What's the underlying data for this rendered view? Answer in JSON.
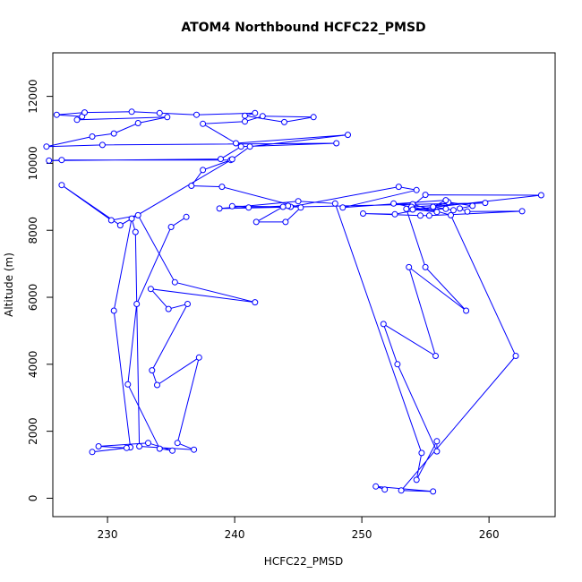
{
  "chart_data": {
    "type": "line",
    "title": "ATOM4 Northbound HCFC22_PMSD",
    "xlabel": "HCFC22_PMSD",
    "ylabel": "Altitude (m)",
    "xlim": [
      225.7,
      265.2
    ],
    "ylim": [
      -550,
      13300
    ],
    "x_ticks": [
      230,
      240,
      250,
      260
    ],
    "y_ticks": [
      0,
      2000,
      4000,
      6000,
      8000,
      10000,
      12000
    ],
    "x_tick_labels": [
      "230",
      "240",
      "250",
      "260"
    ],
    "y_tick_labels": [
      "0",
      "2000",
      "4000",
      "6000",
      "8000",
      "10000",
      "12000"
    ],
    "grid": false,
    "markers": "open-circle",
    "series": [
      {
        "color": "#0000ff",
        "x": [
          251.8,
          251.1,
          255.6,
          253.1,
          262.1,
          257.0,
          254.0,
          252.5,
          255.9,
          253.5,
          255.0,
          258.2,
          253.7,
          255.8,
          251.7,
          252.8,
          255.9,
          255.9,
          254.3,
          254.7,
          247.9,
          245.0,
          238.8,
          259.7,
          253.9,
          255.0,
          264.1,
          254.0,
          256.6,
          257.2,
          255.6,
          252.6,
          250.1,
          254.6,
          255.3,
          262.6,
          258.3,
          257.7,
          258.7,
          256.8,
          255.6,
          256.6,
          248.5,
          254.3,
          252.9,
          244.4,
          239.8,
          241.1,
          244.2,
          243.8,
          241.7,
          244.0,
          245.2,
          239.0,
          236.6,
          237.5,
          239.7,
          226.4,
          225.4,
          238.9,
          240.5,
          248.0,
          229.6,
          225.2,
          228.8,
          230.5,
          232.4,
          234.7,
          227.6,
          228.0,
          226.0,
          228.2,
          231.9,
          234.1,
          237.0,
          241.6,
          240.8,
          243.9,
          246.2,
          242.2,
          240.8,
          237.5,
          240.1,
          248.9,
          241.2,
          239.8,
          231.0,
          226.4,
          230.3,
          232.4,
          235.3,
          241.6,
          233.4,
          234.8,
          236.3,
          233.5,
          233.9,
          237.2,
          235.5,
          236.8,
          232.5,
          232.2,
          231.9,
          230.5,
          231.8,
          228.8,
          231.5,
          229.3,
          233.2,
          235.1,
          234.1,
          231.6,
          232.3,
          235.0,
          236.2
        ],
        "y": [
          260,
          350,
          200,
          230,
          4250,
          8450,
          8780,
          8800,
          8550,
          8640,
          6900,
          5600,
          6900,
          4250,
          5200,
          4000,
          1400,
          1700,
          550,
          1350,
          8800,
          8870,
          8650,
          8820,
          8700,
          9060,
          9050,
          8620,
          8640,
          8600,
          8700,
          8480,
          8500,
          8440,
          8440,
          8570,
          8560,
          8650,
          8730,
          8840,
          8700,
          8900,
          8680,
          9200,
          9300,
          8700,
          8720,
          8680,
          8730,
          8700,
          8250,
          8250,
          8680,
          9300,
          9330,
          9800,
          10100,
          10100,
          10080,
          10130,
          10500,
          10600,
          10550,
          10500,
          10800,
          10890,
          11200,
          11380,
          11300,
          11400,
          11450,
          11520,
          11540,
          11500,
          11450,
          11500,
          11420,
          11230,
          11380,
          11410,
          11250,
          11180,
          10600,
          10850,
          10500,
          10120,
          8150,
          9350,
          8300,
          8450,
          6450,
          5850,
          6250,
          5650,
          5800,
          3820,
          3380,
          4200,
          1650,
          1450,
          1550,
          7950,
          8350,
          5600,
          1520,
          1380,
          1500,
          1550,
          1650,
          1420,
          1480,
          3400,
          5800,
          8100,
          8400
        ]
      }
    ]
  }
}
